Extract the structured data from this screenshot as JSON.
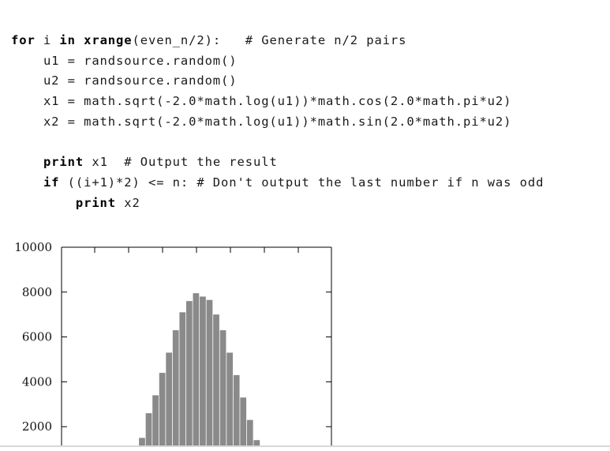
{
  "code": {
    "lines": [
      {
        "indent": "",
        "parts": [
          {
            "t": "for",
            "kw": true
          },
          {
            "t": " i "
          },
          {
            "t": "in",
            "kw": true
          },
          {
            "t": " "
          },
          {
            "t": "xrange",
            "kw": true
          },
          {
            "t": "(even_n/2):   # Generate n/2 pairs"
          }
        ]
      },
      {
        "indent": "    ",
        "parts": [
          {
            "t": "u1 = randsource.random()"
          }
        ]
      },
      {
        "indent": "    ",
        "parts": [
          {
            "t": "u2 = randsource.random()"
          }
        ]
      },
      {
        "indent": "    ",
        "parts": [
          {
            "t": "x1 = math.sqrt(-2.0*math.log(u1))*math.cos(2.0*math.pi*u2)"
          }
        ]
      },
      {
        "indent": "    ",
        "parts": [
          {
            "t": "x2 = math.sqrt(-2.0*math.log(u1))*math.sin(2.0*math.pi*u2)"
          }
        ]
      },
      {
        "indent": "",
        "parts": []
      },
      {
        "indent": "    ",
        "parts": [
          {
            "t": "print",
            "kw": true
          },
          {
            "t": " x1  # Output the result"
          }
        ]
      },
      {
        "indent": "    ",
        "parts": [
          {
            "t": "if",
            "kw": true
          },
          {
            "t": " ((i+1)*2) <= n: # Don't output the last number if n was odd"
          }
        ]
      },
      {
        "indent": "        ",
        "parts": [
          {
            "t": "print",
            "kw": true
          },
          {
            "t": " x2"
          }
        ]
      }
    ]
  },
  "chart_data": {
    "type": "bar",
    "title": "",
    "xlabel": "",
    "ylabel": "",
    "ylim": [
      0,
      10000
    ],
    "yticks": [
      "10000",
      "8000",
      "6000",
      "4000",
      "2000"
    ],
    "values": [
      100,
      800,
      1500,
      2600,
      3400,
      4400,
      5300,
      6300,
      7100,
      7600,
      7950,
      7800,
      7650,
      7000,
      6300,
      5300,
      4300,
      3300,
      2300,
      1400,
      200
    ]
  }
}
